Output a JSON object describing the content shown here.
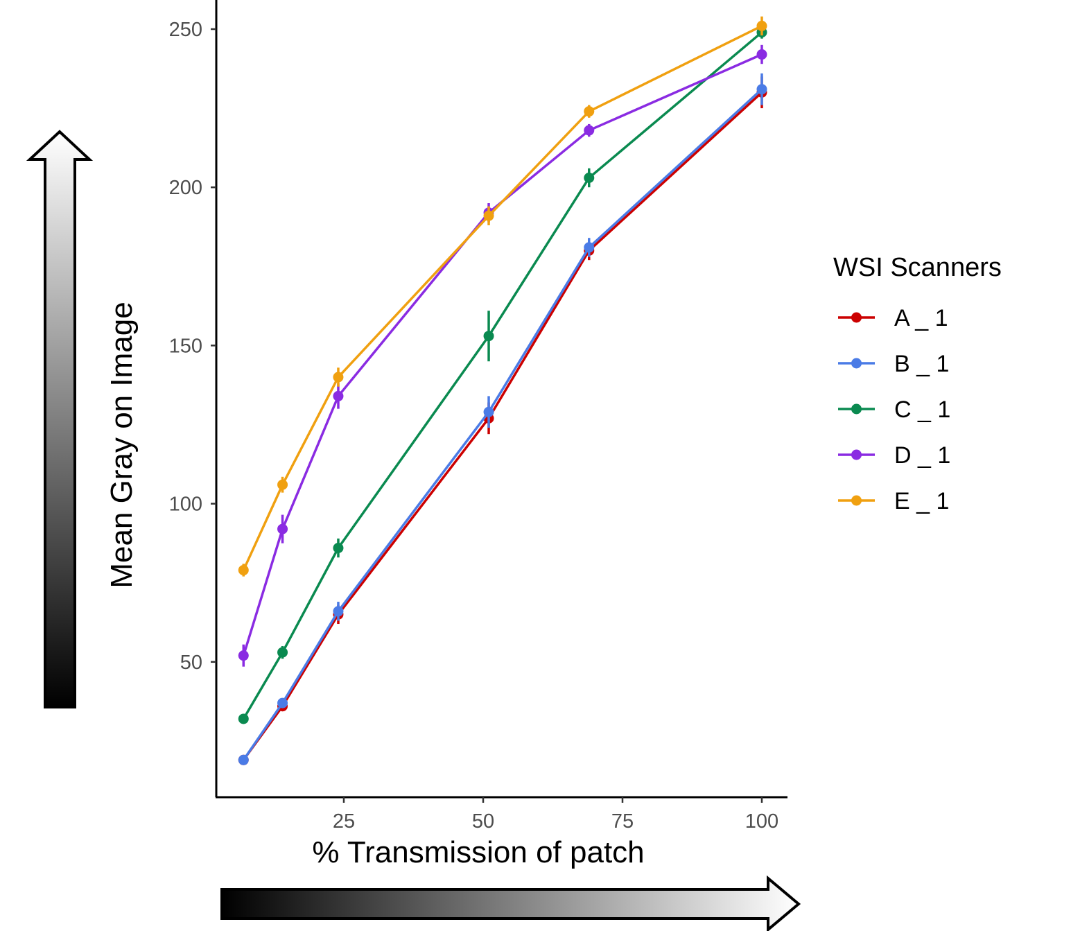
{
  "chart_data": {
    "type": "line",
    "title": "",
    "xlabel": "% Transmission of patch",
    "ylabel": "Mean Gray on Image",
    "xlim": [
      3,
      109
    ],
    "ylim": [
      8,
      259
    ],
    "x_ticks": [
      25,
      50,
      75,
      100
    ],
    "y_ticks": [
      50,
      100,
      150,
      200,
      250
    ],
    "grid": false,
    "legend": {
      "title": "WSI Scanners",
      "position": "right"
    },
    "series": [
      {
        "name": "A _ 1",
        "color": "#cc0000",
        "points": [
          {
            "x": 7,
            "y": 19,
            "err": 1
          },
          {
            "x": 14,
            "y": 36,
            "err": 1.5
          },
          {
            "x": 24,
            "y": 65,
            "err": 3
          },
          {
            "x": 51,
            "y": 127,
            "err": 5
          },
          {
            "x": 69,
            "y": 180,
            "err": 3
          },
          {
            "x": 100,
            "y": 230,
            "err": 5
          }
        ]
      },
      {
        "name": "B _ 1",
        "color": "#4a7be6",
        "points": [
          {
            "x": 7,
            "y": 19,
            "err": 1
          },
          {
            "x": 14,
            "y": 37,
            "err": 1.5
          },
          {
            "x": 24,
            "y": 66,
            "err": 3
          },
          {
            "x": 51,
            "y": 129,
            "err": 5
          },
          {
            "x": 69,
            "y": 181,
            "err": 3
          },
          {
            "x": 100,
            "y": 231,
            "err": 5
          }
        ]
      },
      {
        "name": "C _ 1",
        "color": "#0a8a50",
        "points": [
          {
            "x": 7,
            "y": 32,
            "err": 1
          },
          {
            "x": 14,
            "y": 53,
            "err": 2
          },
          {
            "x": 24,
            "y": 86,
            "err": 3
          },
          {
            "x": 51,
            "y": 153,
            "err": 8
          },
          {
            "x": 69,
            "y": 203,
            "err": 3
          },
          {
            "x": 100,
            "y": 249,
            "err": 2
          }
        ]
      },
      {
        "name": "D _ 1",
        "color": "#8a2be2",
        "points": [
          {
            "x": 7,
            "y": 52,
            "err": 3.5
          },
          {
            "x": 14,
            "y": 92,
            "err": 4.5
          },
          {
            "x": 24,
            "y": 134,
            "err": 4
          },
          {
            "x": 51,
            "y": 192,
            "err": 3
          },
          {
            "x": 69,
            "y": 218,
            "err": 2
          },
          {
            "x": 100,
            "y": 242,
            "err": 3
          }
        ]
      },
      {
        "name": "E _ 1",
        "color": "#f0a010",
        "points": [
          {
            "x": 7,
            "y": 79,
            "err": 2
          },
          {
            "x": 14,
            "y": 106,
            "err": 2.5
          },
          {
            "x": 24,
            "y": 140,
            "err": 3
          },
          {
            "x": 51,
            "y": 191,
            "err": 3
          },
          {
            "x": 69,
            "y": 224,
            "err": 2
          },
          {
            "x": 100,
            "y": 251,
            "err": 3
          }
        ]
      }
    ]
  }
}
